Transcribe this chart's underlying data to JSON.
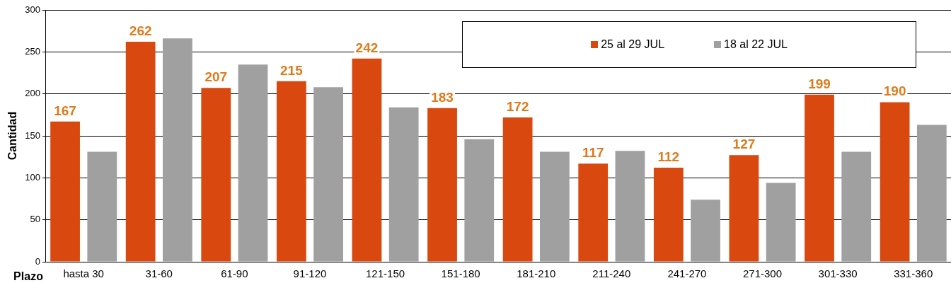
{
  "chart_data": {
    "type": "bar",
    "xlabel": "Plazo",
    "ylabel": "Cantidad",
    "categories": [
      "hasta 30",
      "31-60",
      "61-90",
      "91-120",
      "121-150",
      "151-180",
      "181-210",
      "211-240",
      "241-270",
      "271-300",
      "301-330",
      "331-360"
    ],
    "series": [
      {
        "name": "25 al 29 JUL",
        "color": "#d9480f",
        "values": [
          167,
          262,
          207,
          215,
          242,
          183,
          172,
          117,
          112,
          127,
          199,
          190
        ],
        "value_labels": [
          "167",
          "262",
          "207",
          "215",
          "242",
          "183",
          "172",
          "117",
          "112",
          "127",
          "199",
          "190"
        ]
      },
      {
        "name": "18 al 22 JUL",
        "color": "#a0a0a0",
        "values": [
          131,
          266,
          235,
          208,
          184,
          146,
          131,
          132,
          74,
          94,
          131,
          163
        ]
      }
    ],
    "ylim": [
      0,
      300
    ],
    "yticks": [
      0,
      50,
      100,
      150,
      200,
      250,
      300
    ],
    "grid": "y",
    "legend": "top right"
  }
}
